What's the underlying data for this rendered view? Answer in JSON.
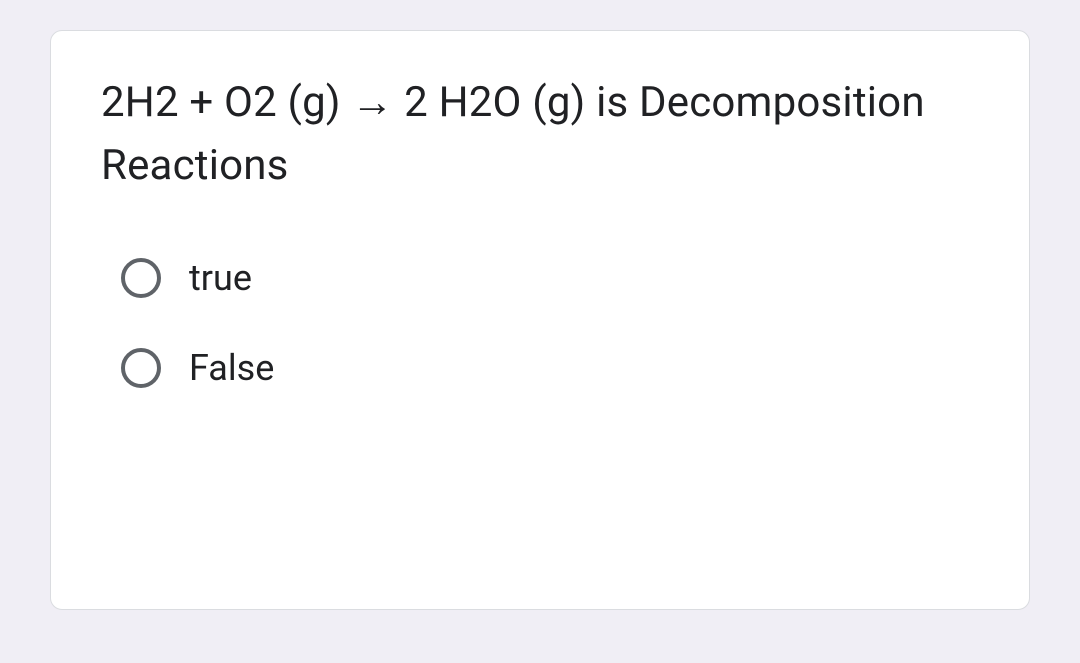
{
  "card": {
    "question": "2H2 + O2 (g) → 2 H2O (g) is Decomposition Reactions",
    "options": [
      {
        "label": "true",
        "selected": false
      },
      {
        "label": "False",
        "selected": false
      }
    ]
  },
  "colors": {
    "page_background": "#f0eef5",
    "card_background": "#ffffff",
    "card_border": "#dadce0",
    "text": "#202124",
    "radio_border": "#5f6368"
  },
  "typography": {
    "question_fontsize": 42,
    "option_fontsize": 36,
    "font_family": "Google Sans, Roboto, Arial, sans-serif"
  },
  "layout": {
    "card_border_radius": 12,
    "radio_size": 40,
    "radio_border_width": 4
  }
}
